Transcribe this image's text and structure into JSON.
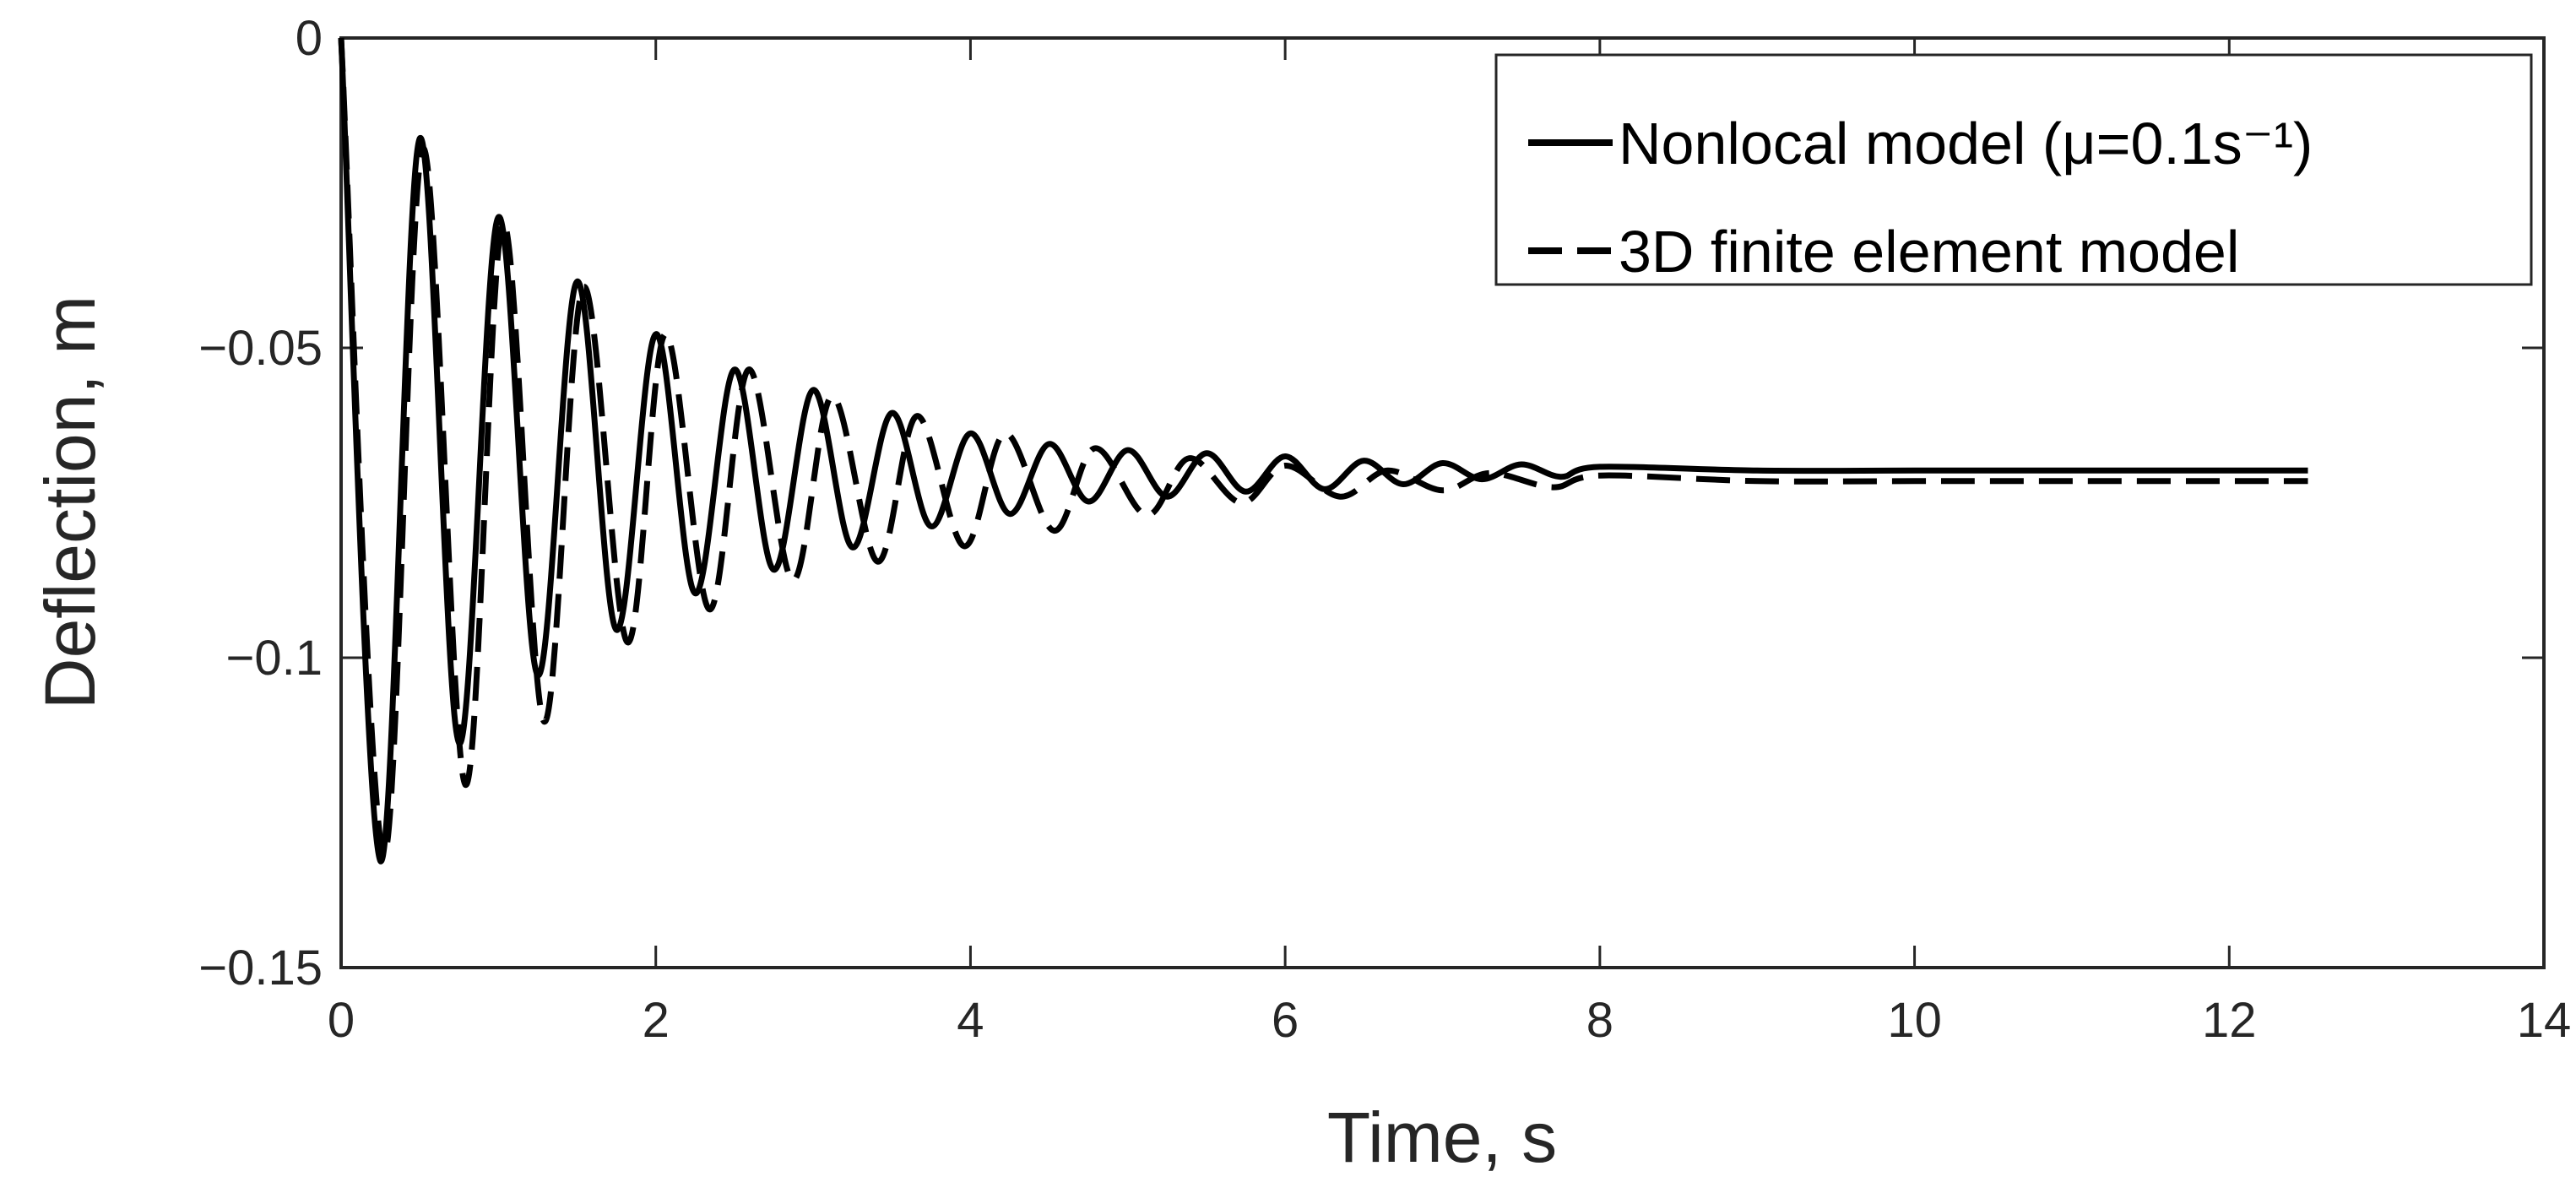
{
  "chart_data": {
    "type": "line",
    "title": "",
    "xlabel": "Time, s",
    "ylabel": "Deflection, m",
    "xlim": [
      0,
      14
    ],
    "ylim": [
      -0.15,
      0
    ],
    "xticks": [
      0,
      2,
      4,
      6,
      8,
      10,
      12,
      14
    ],
    "xtick_labels": [
      "0",
      "2",
      "4",
      "6",
      "8",
      "10",
      "12",
      "14"
    ],
    "yticks": [
      0,
      -0.05,
      -0.1,
      -0.15
    ],
    "ytick_labels": [
      "0",
      "−0.05",
      "−0.1",
      "−0.15"
    ],
    "grid": false,
    "legend_position": "top-right",
    "series": [
      {
        "name": "Nonlocal  model (μ=0.1s⁻¹)",
        "style": "solid",
        "color": "#000000",
        "x": [
          0,
          0.25,
          0.5,
          0.75,
          1.0,
          1.25,
          1.5,
          1.75,
          2.0,
          2.25,
          2.5,
          2.75,
          3.0,
          3.25,
          3.5,
          3.75,
          4.0,
          4.25,
          4.5,
          4.75,
          5.0,
          5.25,
          5.5,
          5.75,
          6.0,
          6.25,
          6.5,
          6.75,
          7.0,
          7.25,
          7.5,
          7.75,
          8.0,
          9.0,
          10.0,
          11.0,
          12.5
        ],
        "y": [
          0,
          -0.1328,
          -0.0162,
          -0.1138,
          -0.0289,
          -0.1028,
          -0.0393,
          -0.0955,
          -0.0478,
          -0.0896,
          -0.0535,
          -0.0858,
          -0.0568,
          -0.0822,
          -0.0605,
          -0.0788,
          -0.0638,
          -0.0768,
          -0.0655,
          -0.0748,
          -0.0665,
          -0.074,
          -0.067,
          -0.0732,
          -0.0675,
          -0.0728,
          -0.0682,
          -0.072,
          -0.0686,
          -0.0712,
          -0.0688,
          -0.0708,
          -0.0692,
          -0.0698,
          -0.0698,
          -0.0698,
          -0.0698
        ]
      },
      {
        "name": "3D finite element model",
        "style": "dashed",
        "color": "#000000",
        "x": [
          0,
          0.27,
          0.52,
          0.79,
          1.03,
          1.29,
          1.54,
          1.82,
          2.06,
          2.34,
          2.59,
          2.87,
          3.12,
          3.41,
          3.66,
          3.96,
          4.22,
          4.53,
          4.79,
          5.12,
          5.39,
          5.72,
          6.0,
          6.35,
          6.65,
          7.0,
          7.3,
          7.7,
          8.0,
          9.0,
          10.0,
          11.0,
          12.5
        ],
        "y": [
          0,
          -0.1318,
          -0.0178,
          -0.1205,
          -0.0298,
          -0.1103,
          -0.0402,
          -0.0975,
          -0.0478,
          -0.0922,
          -0.0535,
          -0.0875,
          -0.0578,
          -0.0845,
          -0.061,
          -0.082,
          -0.0638,
          -0.0795,
          -0.0662,
          -0.077,
          -0.0678,
          -0.075,
          -0.069,
          -0.074,
          -0.0698,
          -0.073,
          -0.0702,
          -0.0725,
          -0.0706,
          -0.0715,
          -0.0715,
          -0.0715,
          -0.0715
        ]
      }
    ]
  }
}
